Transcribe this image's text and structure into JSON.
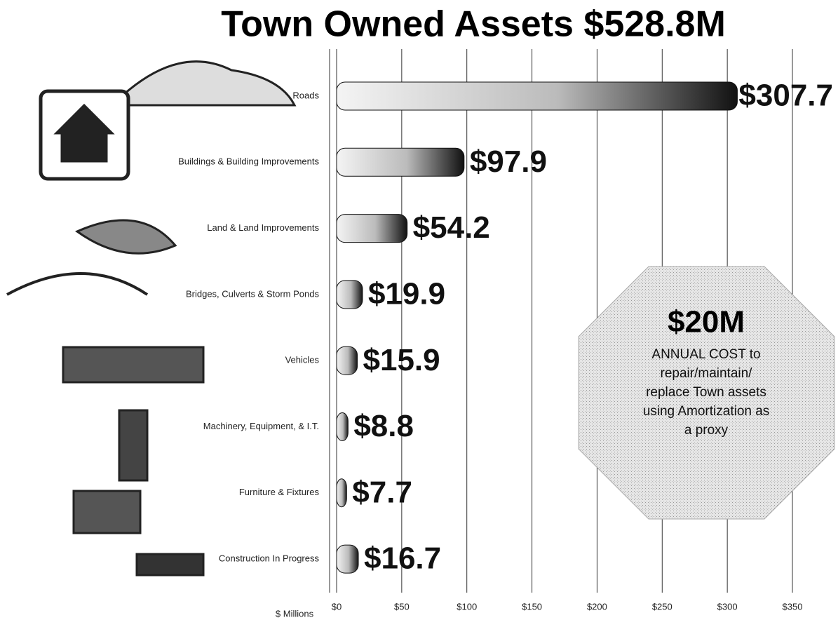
{
  "chart_data": {
    "type": "bar",
    "orientation": "horizontal",
    "title": "Town Owned Assets $528.8M",
    "categories": [
      "Roads",
      "Buildings & Building Improvements",
      "Land & Land Improvements",
      "Bridges, Culverts & Storm Ponds",
      "Vehicles",
      "Machinery, Equipment,  & I.T.",
      "Furniture & Fixtures",
      "Construction In Progress"
    ],
    "values": [
      307.7,
      97.9,
      54.2,
      19.9,
      15.9,
      8.8,
      7.7,
      16.7
    ],
    "value_labels": [
      "$307.7",
      "$97.9",
      "$54.2",
      "$19.9",
      "$15.9",
      "$8.8",
      "$7.7",
      "$16.7"
    ],
    "color": "#111111",
    "xlim": [
      0,
      350
    ],
    "xticks": [
      {
        "value": 0,
        "label": "$0"
      },
      {
        "value": 50,
        "label": "$50"
      },
      {
        "value": 100,
        "label": "$100"
      },
      {
        "value": 150,
        "label": "$150"
      },
      {
        "value": 200,
        "label": "$200"
      },
      {
        "value": 250,
        "label": "$250"
      },
      {
        "value": 300,
        "label": "$300"
      },
      {
        "value": 350,
        "label": "$350"
      }
    ],
    "xlabel": "$ Millions",
    "grid": true,
    "annotation": {
      "headline": "$20M",
      "lines": [
        "ANNUAL COST to",
        "repair/maintain/",
        "replace Town assets",
        "using  Amortization as",
        "a proxy"
      ]
    }
  }
}
